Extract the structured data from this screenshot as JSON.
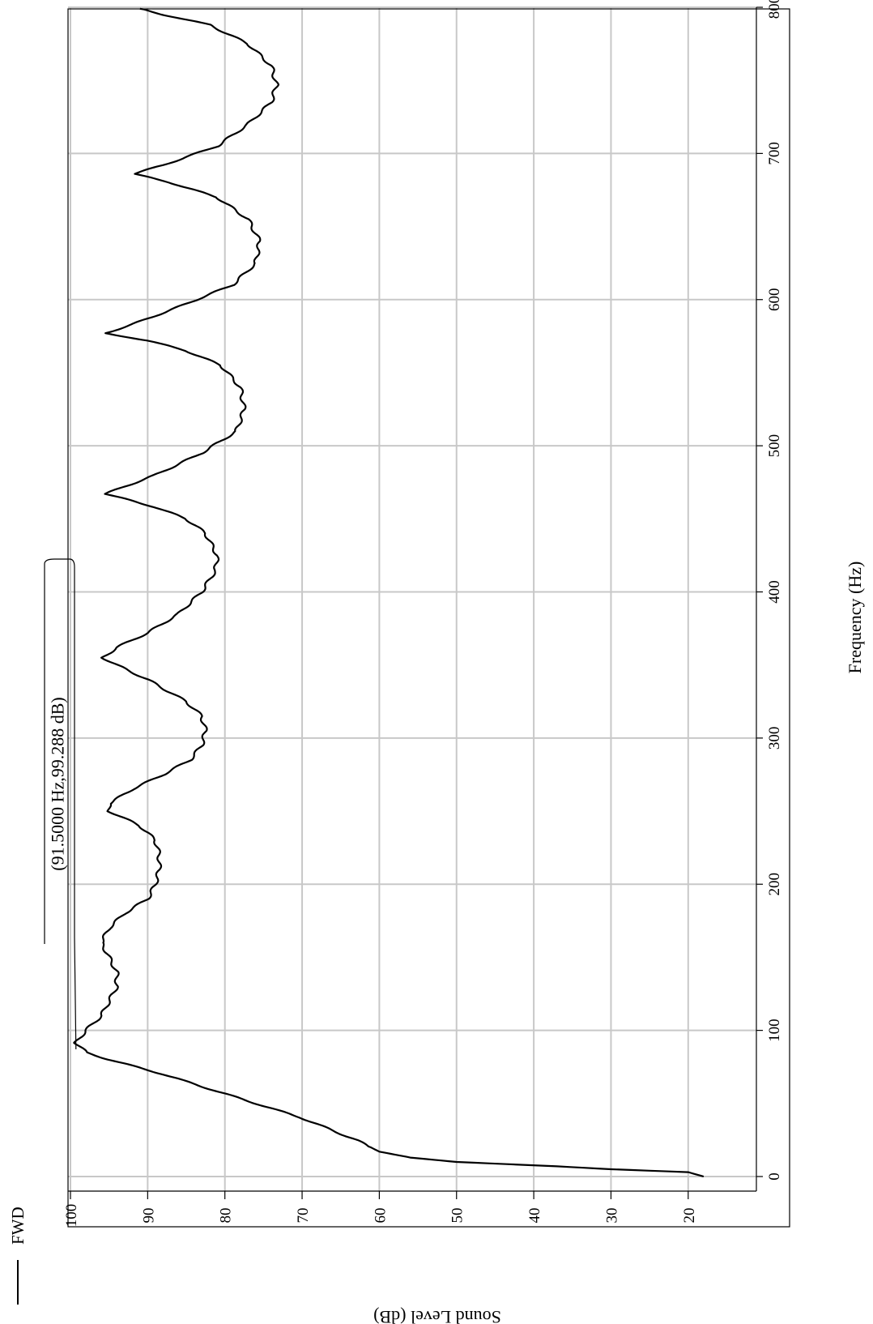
{
  "chart_data": {
    "type": "line",
    "xlabel": "Frequency (Hz)",
    "ylabel": "Sound Level (dB)",
    "xlim": [
      0,
      800
    ],
    "ylim": [
      14,
      100
    ],
    "x_ticks": [
      "0",
      "100",
      "200",
      "300",
      "400",
      "500",
      "600",
      "700",
      "800"
    ],
    "y_ticks": [
      "20",
      "30",
      "40",
      "50",
      "60",
      "70",
      "80",
      "90",
      "100"
    ],
    "grid": true,
    "orientation": "rotated 90° clockwise (frequency axis along right edge)",
    "legend": {
      "position": "top-left",
      "entries": [
        "FWD"
      ]
    },
    "annotation": {
      "text": "(91.5000 Hz,99.288 dB)",
      "x": 91.5,
      "y": 99.288
    },
    "series": [
      {
        "name": "FWD",
        "color": "#000000",
        "points": [
          [
            0,
            18
          ],
          [
            3,
            20
          ],
          [
            5,
            30
          ],
          [
            7,
            37
          ],
          [
            10,
            50
          ],
          [
            13,
            56
          ],
          [
            17,
            60
          ],
          [
            25,
            63
          ],
          [
            40,
            70
          ],
          [
            55,
            79
          ],
          [
            70,
            88
          ],
          [
            80,
            95
          ],
          [
            85,
            98
          ],
          [
            91.5,
            99.3
          ],
          [
            100,
            98
          ],
          [
            110,
            96
          ],
          [
            120,
            95
          ],
          [
            130,
            94
          ],
          [
            140,
            94
          ],
          [
            150,
            95
          ],
          [
            160,
            96
          ],
          [
            170,
            95
          ],
          [
            180,
            93
          ],
          [
            190,
            90
          ],
          [
            200,
            89
          ],
          [
            210,
            88.5
          ],
          [
            220,
            88.5
          ],
          [
            230,
            89
          ],
          [
            240,
            91
          ],
          [
            250,
            95
          ],
          [
            255,
            95
          ],
          [
            265,
            92
          ],
          [
            275,
            88
          ],
          [
            285,
            84.5
          ],
          [
            295,
            83
          ],
          [
            305,
            82.5
          ],
          [
            315,
            83
          ],
          [
            325,
            85
          ],
          [
            340,
            90
          ],
          [
            350,
            94
          ],
          [
            355,
            95.8
          ],
          [
            362,
            94
          ],
          [
            372,
            90
          ],
          [
            385,
            86
          ],
          [
            400,
            83
          ],
          [
            415,
            81.2
          ],
          [
            425,
            81
          ],
          [
            440,
            82.5
          ],
          [
            450,
            85
          ],
          [
            458,
            89
          ],
          [
            463,
            92.5
          ],
          [
            467,
            95.5
          ],
          [
            472,
            93
          ],
          [
            480,
            89
          ],
          [
            495,
            83
          ],
          [
            510,
            78.5
          ],
          [
            525,
            77.5
          ],
          [
            540,
            78
          ],
          [
            555,
            80.5
          ],
          [
            565,
            85
          ],
          [
            572,
            90
          ],
          [
            577,
            95.5
          ],
          [
            583,
            92
          ],
          [
            595,
            86
          ],
          [
            610,
            79
          ],
          [
            625,
            76
          ],
          [
            640,
            75.5
          ],
          [
            655,
            77
          ],
          [
            670,
            81
          ],
          [
            680,
            87
          ],
          [
            686,
            91.8
          ],
          [
            692,
            88
          ],
          [
            705,
            81
          ],
          [
            720,
            77
          ],
          [
            735,
            74
          ],
          [
            747,
            73.3
          ],
          [
            760,
            74
          ],
          [
            775,
            77
          ],
          [
            788,
            82
          ],
          [
            795,
            88
          ],
          [
            799,
            91
          ]
        ]
      }
    ]
  }
}
